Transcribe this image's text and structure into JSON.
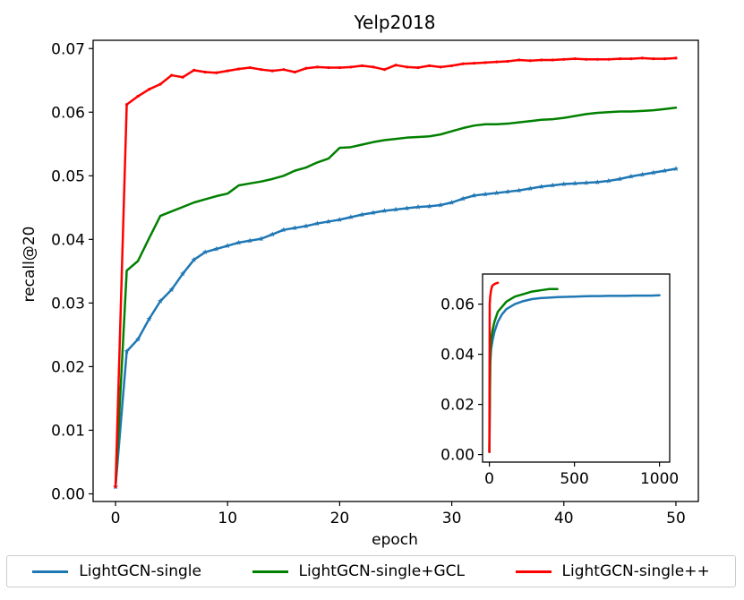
{
  "chart_data": {
    "type": "line",
    "title": "Yelp2018",
    "xlabel": "epoch",
    "ylabel": "recall@20",
    "xlim": [
      -2,
      52
    ],
    "ylim": [
      -0.0012,
      0.0713
    ],
    "xticks": [
      0,
      10,
      20,
      30,
      40,
      50
    ],
    "yticks": [
      0.0,
      0.01,
      0.02,
      0.03,
      0.04,
      0.05,
      0.06,
      0.07
    ],
    "xtick_labels": [
      "0",
      "10",
      "20",
      "30",
      "40",
      "50"
    ],
    "ytick_labels": [
      "0.00",
      "0.01",
      "0.02",
      "0.03",
      "0.04",
      "0.05",
      "0.06",
      "0.07"
    ],
    "grid": false,
    "legend_position": "below",
    "series": [
      {
        "name": "LightGCN-single",
        "color": "#1f77b4",
        "marker": "star",
        "x": [
          0,
          1,
          2,
          3,
          4,
          5,
          6,
          7,
          8,
          9,
          10,
          11,
          12,
          13,
          14,
          15,
          16,
          17,
          18,
          19,
          20,
          21,
          22,
          23,
          24,
          25,
          26,
          27,
          28,
          29,
          30,
          31,
          32,
          33,
          34,
          35,
          36,
          37,
          38,
          39,
          40,
          41,
          42,
          43,
          44,
          45,
          46,
          47,
          48,
          49,
          50
        ],
        "values": [
          0.0011,
          0.0224,
          0.0243,
          0.0275,
          0.0303,
          0.0321,
          0.0346,
          0.0368,
          0.038,
          0.0385,
          0.039,
          0.0395,
          0.0398,
          0.0401,
          0.0408,
          0.0415,
          0.0418,
          0.0421,
          0.0425,
          0.0428,
          0.0431,
          0.0435,
          0.0439,
          0.0442,
          0.0445,
          0.0447,
          0.0449,
          0.0451,
          0.0452,
          0.0454,
          0.0458,
          0.0464,
          0.0469,
          0.0471,
          0.0473,
          0.0475,
          0.0477,
          0.048,
          0.0483,
          0.0485,
          0.0487,
          0.0488,
          0.0489,
          0.049,
          0.0492,
          0.0495,
          0.0499,
          0.0502,
          0.0505,
          0.0508,
          0.0511
        ]
      },
      {
        "name": "LightGCN-single+GCL",
        "color": "#008000",
        "marker": "none",
        "x": [
          0,
          1,
          2,
          3,
          4,
          5,
          6,
          7,
          8,
          9,
          10,
          11,
          12,
          13,
          14,
          15,
          16,
          17,
          18,
          19,
          20,
          21,
          22,
          23,
          24,
          25,
          26,
          27,
          28,
          29,
          30,
          31,
          32,
          33,
          34,
          35,
          36,
          37,
          38,
          39,
          40,
          41,
          42,
          43,
          44,
          45,
          46,
          47,
          48,
          49,
          50
        ],
        "values": [
          0.0011,
          0.0351,
          0.0366,
          0.0402,
          0.0437,
          0.0444,
          0.0451,
          0.0458,
          0.0463,
          0.0468,
          0.0472,
          0.0485,
          0.0488,
          0.0491,
          0.0495,
          0.05,
          0.0508,
          0.0513,
          0.0521,
          0.0527,
          0.0544,
          0.0545,
          0.0549,
          0.0553,
          0.0556,
          0.0558,
          0.056,
          0.0561,
          0.0562,
          0.0565,
          0.057,
          0.0575,
          0.0579,
          0.0581,
          0.0581,
          0.0582,
          0.0584,
          0.0586,
          0.0588,
          0.0589,
          0.0591,
          0.0594,
          0.0597,
          0.0599,
          0.06,
          0.0601,
          0.0601,
          0.0602,
          0.0603,
          0.0605,
          0.0607
        ]
      },
      {
        "name": "LightGCN-single++",
        "color": "#ff0000",
        "marker": "dot",
        "x": [
          0,
          1,
          2,
          3,
          4,
          5,
          6,
          7,
          8,
          9,
          10,
          11,
          12,
          13,
          14,
          15,
          16,
          17,
          18,
          19,
          20,
          21,
          22,
          23,
          24,
          25,
          26,
          27,
          28,
          29,
          30,
          31,
          32,
          33,
          34,
          35,
          36,
          37,
          38,
          39,
          40,
          41,
          42,
          43,
          44,
          45,
          46,
          47,
          48,
          49,
          50
        ],
        "values": [
          0.0011,
          0.0612,
          0.0625,
          0.0636,
          0.0644,
          0.0658,
          0.0655,
          0.0666,
          0.0663,
          0.0662,
          0.0665,
          0.0668,
          0.067,
          0.0667,
          0.0665,
          0.0667,
          0.0663,
          0.0669,
          0.0671,
          0.067,
          0.067,
          0.0671,
          0.0673,
          0.0671,
          0.0667,
          0.0674,
          0.0671,
          0.067,
          0.0673,
          0.0671,
          0.0673,
          0.0676,
          0.0677,
          0.0678,
          0.0679,
          0.068,
          0.0682,
          0.0681,
          0.0682,
          0.0682,
          0.0683,
          0.0684,
          0.0683,
          0.0683,
          0.0683,
          0.0684,
          0.0684,
          0.0685,
          0.0684,
          0.0684,
          0.0685
        ]
      }
    ],
    "inset": {
      "type": "line",
      "xlim": [
        -40,
        1060
      ],
      "ylim": [
        -0.003,
        0.072
      ],
      "xticks": [
        0,
        500,
        1000
      ],
      "yticks": [
        0.0,
        0.02,
        0.04,
        0.06
      ],
      "xtick_labels": [
        "0",
        "500",
        "1000"
      ],
      "ytick_labels": [
        "0.00",
        "0.02",
        "0.04",
        "0.06"
      ],
      "series": [
        {
          "name": "LightGCN-single",
          "color": "#1f77b4",
          "x": [
            0,
            5,
            10,
            20,
            30,
            50,
            75,
            100,
            150,
            200,
            250,
            300,
            350,
            400,
            450,
            500,
            550,
            600,
            650,
            700,
            750,
            800,
            850,
            900,
            950,
            1000
          ],
          "values": [
            0.001,
            0.036,
            0.042,
            0.046,
            0.049,
            0.053,
            0.056,
            0.058,
            0.06,
            0.0612,
            0.062,
            0.0624,
            0.0626,
            0.0628,
            0.0629,
            0.063,
            0.0631,
            0.0632,
            0.0632,
            0.0633,
            0.0633,
            0.0633,
            0.0634,
            0.0634,
            0.0634,
            0.0635
          ]
        },
        {
          "name": "LightGCN-single+GCL",
          "color": "#008000",
          "x": [
            0,
            5,
            10,
            20,
            30,
            50,
            75,
            100,
            150,
            200,
            250,
            300,
            350,
            400
          ],
          "values": [
            0.001,
            0.04,
            0.046,
            0.05,
            0.053,
            0.057,
            0.059,
            0.061,
            0.063,
            0.064,
            0.065,
            0.0655,
            0.066,
            0.066
          ]
        },
        {
          "name": "LightGCN-single++",
          "color": "#ff0000",
          "x": [
            0,
            2,
            5,
            10,
            15,
            20,
            30,
            40,
            50
          ],
          "values": [
            0.001,
            0.06,
            0.063,
            0.0655,
            0.067,
            0.0675,
            0.068,
            0.0683,
            0.0685
          ]
        }
      ]
    }
  }
}
